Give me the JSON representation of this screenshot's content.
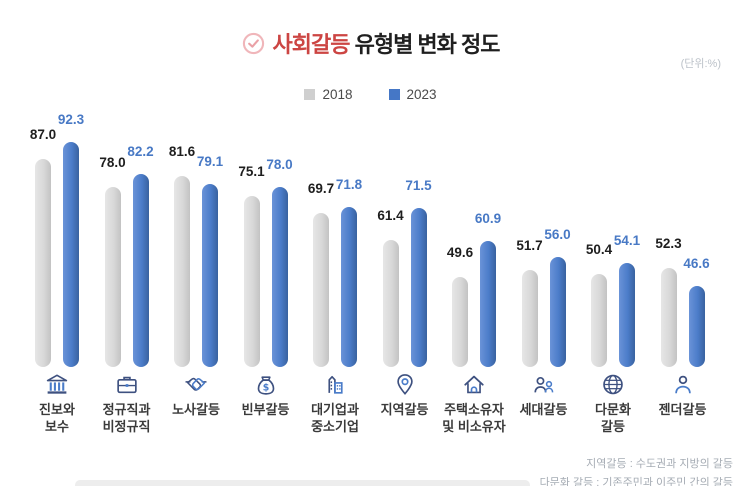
{
  "title": {
    "highlight": "사회갈등",
    "rest": "유형별 변화 정도"
  },
  "unit_label": "(단위:%)",
  "legend": [
    {
      "label": "2018",
      "color": "#cfcfcf"
    },
    {
      "label": "2023",
      "color": "#4577c6"
    }
  ],
  "chart_data": {
    "type": "bar",
    "title": "사회갈등 유형별 변화 정도",
    "unit": "%",
    "categories": [
      [
        "진보와",
        "보수"
      ],
      [
        "정규직과",
        "비정규직"
      ],
      [
        "노사갈등"
      ],
      [
        "빈부갈등"
      ],
      [
        "대기업과",
        "중소기업"
      ],
      [
        "지역갈등"
      ],
      [
        "주택소유자",
        "및 비소유자"
      ],
      [
        "세대갈등"
      ],
      [
        "다문화",
        "갈등"
      ],
      [
        "젠더갈등"
      ]
    ],
    "icons": [
      "bank",
      "briefcase",
      "handshake",
      "moneybag",
      "buildings",
      "mappin",
      "house",
      "people",
      "globe",
      "person"
    ],
    "series": [
      {
        "name": "2018",
        "color": "#d8d8d8",
        "values": [
          87.0,
          78.0,
          81.6,
          75.1,
          69.7,
          61.4,
          49.6,
          51.7,
          50.4,
          52.3
        ]
      },
      {
        "name": "2023",
        "color": "#4b7cc9",
        "values": [
          92.3,
          82.2,
          79.1,
          78.0,
          71.8,
          71.5,
          60.9,
          56.0,
          54.1,
          46.6
        ]
      }
    ],
    "legend_position": "top",
    "grid": false
  },
  "footnotes": [
    "지역갈등 : 수도권과 지방의 갈등",
    "다문화 갈등 : 기존주민과 이주민 간의 갈등"
  ]
}
